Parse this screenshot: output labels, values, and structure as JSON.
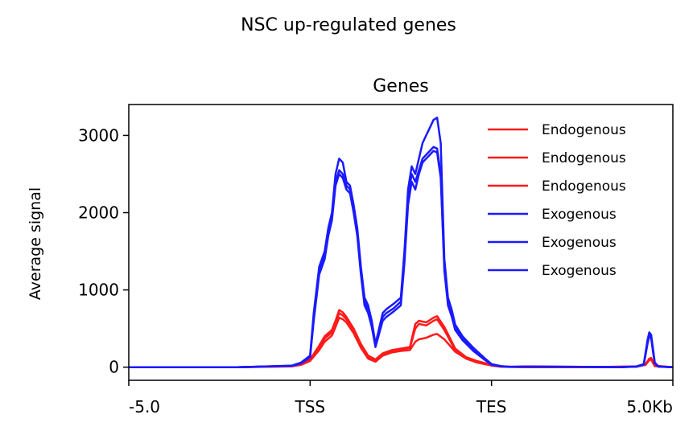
{
  "chart_data": {
    "type": "line",
    "suptitle": "NSC up-regulated genes",
    "title": "Genes",
    "xlabel": "",
    "ylabel": "Average signal",
    "x_tick_labels": [
      "-5.0",
      "TSS",
      "TES",
      "5.0Kb"
    ],
    "x_ticks": [
      0,
      1,
      2,
      3
    ],
    "xlim": [
      0,
      3
    ],
    "ylim": [
      -170,
      3400
    ],
    "y_ticks": [
      0,
      1000,
      2000,
      3000
    ],
    "legend_position": "upper right",
    "colors": {
      "Endogenous": "#ff1a1a",
      "Exogenous": "#1a1aff"
    },
    "series": [
      {
        "name": "Endogenous",
        "color": "#ff1a1a",
        "x": [
          0,
          0.6,
          0.9,
          0.95,
          1.0,
          1.05,
          1.08,
          1.12,
          1.14,
          1.16,
          1.18,
          1.2,
          1.24,
          1.28,
          1.32,
          1.36,
          1.4,
          1.45,
          1.5,
          1.55,
          1.58,
          1.6,
          1.62,
          1.64,
          1.66,
          1.68,
          1.7,
          1.74,
          1.8,
          1.86,
          1.92,
          2.0,
          2.05,
          2.2,
          2.5,
          2.8,
          2.85,
          2.87,
          2.88,
          2.9,
          3.0
        ],
        "y": [
          0,
          0,
          15,
          40,
          100,
          280,
          400,
          480,
          600,
          740,
          710,
          650,
          500,
          300,
          150,
          100,
          180,
          220,
          240,
          260,
          560,
          600,
          590,
          580,
          610,
          640,
          660,
          520,
          240,
          130,
          80,
          30,
          10,
          0,
          0,
          10,
          40,
          110,
          120,
          20,
          0
        ]
      },
      {
        "name": "Endogenous",
        "color": "#ff1a1a",
        "x": [
          0,
          0.6,
          0.9,
          0.95,
          1.0,
          1.05,
          1.08,
          1.12,
          1.14,
          1.16,
          1.18,
          1.2,
          1.24,
          1.28,
          1.32,
          1.36,
          1.4,
          1.45,
          1.5,
          1.55,
          1.58,
          1.6,
          1.62,
          1.64,
          1.66,
          1.68,
          1.7,
          1.74,
          1.8,
          1.86,
          1.92,
          2.0,
          2.05,
          2.2,
          2.5,
          2.8,
          2.85,
          2.87,
          2.88,
          2.9,
          3.0
        ],
        "y": [
          0,
          0,
          12,
          35,
          90,
          250,
          370,
          450,
          560,
          700,
          670,
          620,
          480,
          280,
          130,
          90,
          170,
          210,
          230,
          250,
          500,
          560,
          550,
          540,
          570,
          600,
          620,
          480,
          220,
          120,
          70,
          25,
          8,
          0,
          0,
          8,
          35,
          100,
          110,
          15,
          0
        ]
      },
      {
        "name": "Endogenous",
        "color": "#ff1a1a",
        "x": [
          0,
          0.6,
          0.9,
          0.95,
          1.0,
          1.05,
          1.08,
          1.12,
          1.14,
          1.16,
          1.18,
          1.2,
          1.24,
          1.28,
          1.32,
          1.36,
          1.4,
          1.45,
          1.5,
          1.55,
          1.58,
          1.6,
          1.62,
          1.64,
          1.66,
          1.68,
          1.7,
          1.74,
          1.8,
          1.86,
          1.92,
          2.0,
          2.05,
          2.2,
          2.5,
          2.8,
          2.85,
          2.87,
          2.88,
          2.9,
          3.0
        ],
        "y": [
          0,
          0,
          10,
          30,
          80,
          220,
          330,
          410,
          520,
          640,
          620,
          580,
          440,
          250,
          110,
          70,
          150,
          190,
          210,
          220,
          330,
          360,
          370,
          380,
          400,
          420,
          430,
          360,
          200,
          110,
          60,
          20,
          6,
          0,
          0,
          6,
          30,
          90,
          100,
          12,
          0
        ]
      },
      {
        "name": "Exogenous",
        "color": "#1a1aff",
        "x": [
          0,
          0.6,
          0.9,
          0.95,
          1.0,
          1.02,
          1.05,
          1.08,
          1.1,
          1.12,
          1.14,
          1.16,
          1.18,
          1.2,
          1.22,
          1.24,
          1.26,
          1.28,
          1.3,
          1.32,
          1.34,
          1.36,
          1.38,
          1.4,
          1.42,
          1.46,
          1.5,
          1.52,
          1.54,
          1.56,
          1.58,
          1.6,
          1.62,
          1.64,
          1.66,
          1.68,
          1.7,
          1.72,
          1.74,
          1.76,
          1.78,
          1.8,
          1.84,
          1.9,
          1.96,
          2.0,
          2.05,
          2.1,
          2.2,
          2.5,
          2.7,
          2.8,
          2.84,
          2.86,
          2.87,
          2.88,
          2.89,
          2.9,
          2.92,
          3.0
        ],
        "y": [
          0,
          0,
          20,
          60,
          150,
          700,
          1300,
          1500,
          1800,
          2000,
          2500,
          2700,
          2650,
          2400,
          2350,
          2100,
          1800,
          1300,
          900,
          800,
          600,
          300,
          500,
          700,
          750,
          820,
          900,
          1500,
          2300,
          2600,
          2500,
          2700,
          2900,
          3000,
          3100,
          3200,
          3230,
          2900,
          1400,
          900,
          750,
          550,
          400,
          250,
          120,
          40,
          15,
          5,
          10,
          5,
          0,
          10,
          40,
          350,
          450,
          420,
          250,
          60,
          10,
          0
        ]
      },
      {
        "name": "Exogenous",
        "color": "#1a1aff",
        "x": [
          0,
          0.6,
          0.9,
          0.95,
          1.0,
          1.02,
          1.05,
          1.08,
          1.1,
          1.12,
          1.14,
          1.16,
          1.18,
          1.2,
          1.22,
          1.24,
          1.26,
          1.28,
          1.3,
          1.32,
          1.34,
          1.36,
          1.38,
          1.4,
          1.42,
          1.46,
          1.5,
          1.52,
          1.54,
          1.56,
          1.58,
          1.6,
          1.62,
          1.64,
          1.66,
          1.68,
          1.7,
          1.72,
          1.74,
          1.76,
          1.78,
          1.8,
          1.84,
          1.9,
          1.96,
          2.0,
          2.05,
          2.1,
          2.2,
          2.5,
          2.7,
          2.8,
          2.84,
          2.86,
          2.87,
          2.88,
          2.89,
          2.9,
          2.92,
          3.0
        ],
        "y": [
          0,
          0,
          18,
          55,
          140,
          650,
          1250,
          1450,
          1750,
          1950,
          2400,
          2550,
          2500,
          2350,
          2300,
          2050,
          1750,
          1250,
          850,
          750,
          560,
          280,
          460,
          650,
          700,
          760,
          850,
          1400,
          2200,
          2500,
          2400,
          2550,
          2700,
          2750,
          2800,
          2850,
          2830,
          2500,
          1300,
          850,
          700,
          520,
          380,
          230,
          110,
          35,
          12,
          4,
          8,
          4,
          0,
          8,
          35,
          330,
          430,
          400,
          230,
          55,
          8,
          0
        ]
      },
      {
        "name": "Exogenous",
        "color": "#1a1aff",
        "x": [
          0,
          0.6,
          0.9,
          0.95,
          1.0,
          1.02,
          1.05,
          1.08,
          1.1,
          1.12,
          1.14,
          1.16,
          1.18,
          1.2,
          1.22,
          1.24,
          1.26,
          1.28,
          1.3,
          1.32,
          1.34,
          1.36,
          1.38,
          1.4,
          1.42,
          1.46,
          1.5,
          1.52,
          1.54,
          1.56,
          1.58,
          1.6,
          1.62,
          1.64,
          1.66,
          1.68,
          1.7,
          1.72,
          1.74,
          1.76,
          1.78,
          1.8,
          1.84,
          1.9,
          1.96,
          2.0,
          2.05,
          2.1,
          2.2,
          2.5,
          2.7,
          2.8,
          2.84,
          2.86,
          2.87,
          2.88,
          2.89,
          2.9,
          2.92,
          3.0
        ],
        "y": [
          0,
          0,
          16,
          50,
          130,
          600,
          1200,
          1400,
          1700,
          1900,
          2350,
          2500,
          2450,
          2300,
          2250,
          2000,
          1700,
          1200,
          800,
          700,
          520,
          260,
          430,
          600,
          650,
          720,
          800,
          1350,
          2100,
          2400,
          2300,
          2500,
          2650,
          2700,
          2750,
          2800,
          2780,
          2450,
          1250,
          800,
          660,
          480,
          350,
          210,
          100,
          30,
          10,
          3,
          6,
          3,
          0,
          6,
          30,
          300,
          400,
          380,
          210,
          50,
          6,
          0
        ]
      }
    ]
  }
}
